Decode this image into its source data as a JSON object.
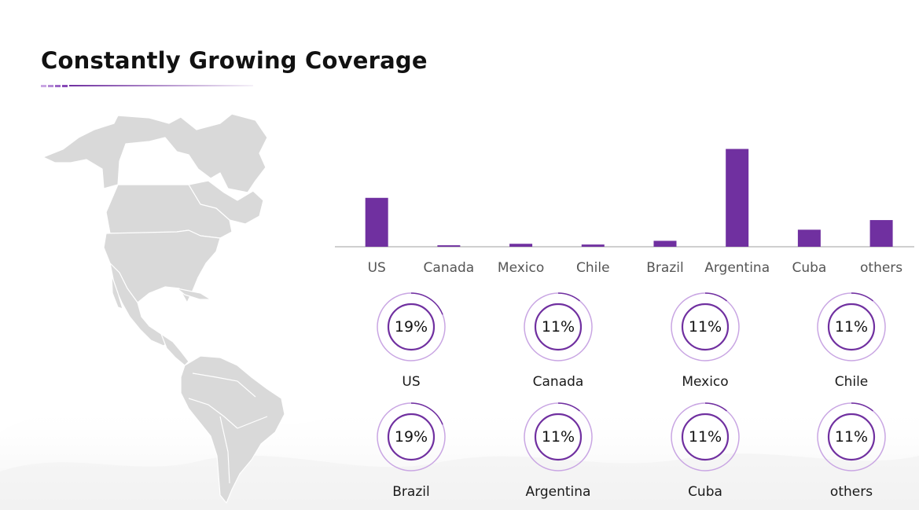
{
  "header": {
    "title": "Constantly Growing Coverage"
  },
  "colors": {
    "accent": "#7030a0",
    "accent_light": "#c9a6e3",
    "map": "#d9d9d9",
    "axis": "#bfbfbf"
  },
  "map": {
    "icon": "americas-map-icon"
  },
  "chart_data": {
    "type": "bar",
    "categories": [
      "US",
      "Canada",
      "Mexico",
      "Chile",
      "Brazil",
      "Argentina",
      "Cuba",
      "others"
    ],
    "values": [
      66,
      2,
      4,
      3,
      8,
      132,
      23,
      36
    ],
    "ylim": [
      0,
      140
    ],
    "grid": false,
    "legend": "none"
  },
  "share_gauges": [
    {
      "country": "US",
      "percent_label": "19%",
      "value": 19
    },
    {
      "country": "Canada",
      "percent_label": "11%",
      "value": 11
    },
    {
      "country": "Mexico",
      "percent_label": "11%",
      "value": 11
    },
    {
      "country": "Chile",
      "percent_label": "11%",
      "value": 11
    },
    {
      "country": "Brazil",
      "percent_label": "19%",
      "value": 19
    },
    {
      "country": "Argentina",
      "percent_label": "11%",
      "value": 11
    },
    {
      "country": "Cuba",
      "percent_label": "11%",
      "value": 11
    },
    {
      "country": "others",
      "percent_label": "11%",
      "value": 11
    }
  ]
}
